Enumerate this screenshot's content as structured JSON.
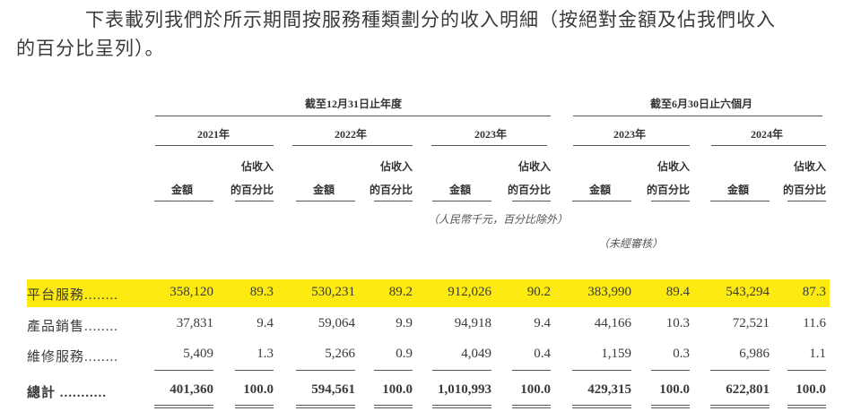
{
  "intro": {
    "line1": "下表載列我們於所示期間按服務種類劃分的收入明細（按絕對金額及佔我們收入",
    "line2": "的百分比呈列）。"
  },
  "header": {
    "group_year": "截至12月31日止年度",
    "group_half": "截至6月30日止六個月",
    "periods": [
      "2021年",
      "2022年",
      "2023年",
      "2023年",
      "2024年"
    ],
    "amount_label": "金額",
    "pct_label_1": "佔收入",
    "pct_label_2": "的百分比",
    "unit_note": "（人民幣千元，百分比除外）",
    "unaudited_note": "（未經審核）"
  },
  "highlight_color": "#fcea10",
  "rows": [
    {
      "label": "平台服務........",
      "values": [
        "358,120",
        "89.3",
        "530,231",
        "89.2",
        "912,026",
        "90.2",
        "383,990",
        "89.4",
        "543,294",
        "87.3"
      ],
      "highlighted": true
    },
    {
      "label": "產品銷售........",
      "values": [
        "37,831",
        "9.4",
        "59,064",
        "9.9",
        "94,918",
        "9.4",
        "44,166",
        "10.3",
        "72,521",
        "11.6"
      ]
    },
    {
      "label": "維修服務........",
      "values": [
        "5,409",
        "1.3",
        "5,266",
        "0.9",
        "4,049",
        "0.4",
        "1,159",
        "0.3",
        "6,986",
        "1.1"
      ]
    },
    {
      "label": "總計 ...........",
      "values": [
        "401,360",
        "100.0",
        "594,561",
        "100.0",
        "1,010,993",
        "100.0",
        "429,315",
        "100.0",
        "622,801",
        "100.0"
      ],
      "total": true
    }
  ]
}
